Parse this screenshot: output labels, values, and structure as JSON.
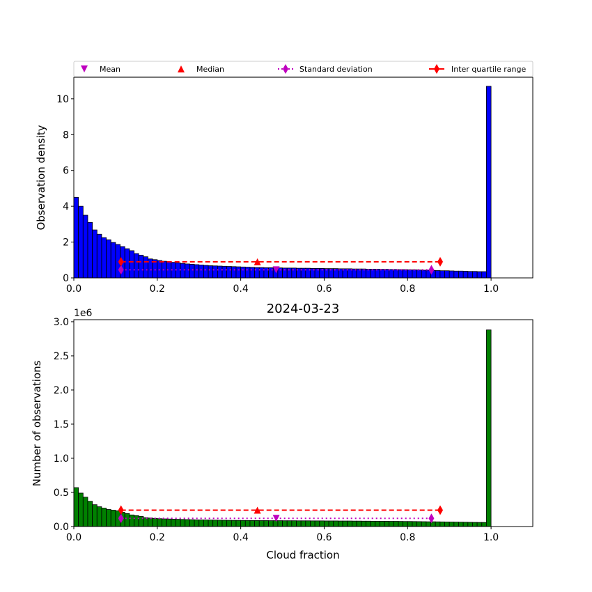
{
  "chart_data": [
    {
      "type": "bar",
      "title": "",
      "xlabel": "",
      "ylabel": "Observation density",
      "xlim": [
        0,
        1.1
      ],
      "ylim": [
        0,
        11.2
      ],
      "xticks": [
        "0.0",
        "0.2",
        "0.4",
        "0.6",
        "0.8",
        "1.0"
      ],
      "yticks": [
        "0",
        "2",
        "4",
        "6",
        "8",
        "10"
      ],
      "ytick_values": [
        0,
        2,
        4,
        6,
        8,
        10
      ],
      "bin_count": 90,
      "bar_color": "#0000ff",
      "values": [
        4.5,
        4.0,
        3.5,
        3.1,
        2.68,
        2.44,
        2.25,
        2.13,
        1.98,
        1.87,
        1.75,
        1.63,
        1.52,
        1.36,
        1.27,
        1.18,
        1.06,
        1.02,
        0.97,
        0.93,
        0.9,
        0.87,
        0.84,
        0.81,
        0.78,
        0.76,
        0.74,
        0.72,
        0.7,
        0.68,
        0.67,
        0.66,
        0.65,
        0.64,
        0.63,
        0.62,
        0.61,
        0.6,
        0.59,
        0.58,
        0.58,
        0.57,
        0.57,
        0.56,
        0.56,
        0.55,
        0.55,
        0.55,
        0.54,
        0.54,
        0.54,
        0.53,
        0.53,
        0.53,
        0.52,
        0.52,
        0.52,
        0.51,
        0.51,
        0.51,
        0.5,
        0.5,
        0.5,
        0.49,
        0.49,
        0.49,
        0.48,
        0.48,
        0.47,
        0.47,
        0.46,
        0.46,
        0.45,
        0.45,
        0.44,
        0.43,
        0.43,
        0.42,
        0.41,
        0.4,
        0.4,
        0.39,
        0.38,
        0.38,
        0.37,
        0.36,
        0.36,
        0.35,
        0.35,
        10.7
      ],
      "stats": {
        "mean": {
          "x": 0.485,
          "y": 0.45
        },
        "median": {
          "x": 0.44,
          "y": 0.9
        },
        "std_range": {
          "x": [
            0.113,
            0.857
          ],
          "y": 0.45
        },
        "iqr_range": {
          "x": [
            0.113,
            0.878
          ],
          "y": 0.9
        }
      }
    },
    {
      "type": "bar",
      "title": "2024-03-23",
      "xlabel": "Cloud fraction",
      "ylabel": "Number of observations",
      "offset_label": "1e6",
      "xlim": [
        0,
        1.1
      ],
      "ylim": [
        0,
        3.03
      ],
      "xticks": [
        "0.0",
        "0.2",
        "0.4",
        "0.6",
        "0.8",
        "1.0"
      ],
      "yticks": [
        "0.0",
        "0.5",
        "1.0",
        "1.5",
        "2.0",
        "2.5",
        "3.0"
      ],
      "ytick_values": [
        0,
        0.5,
        1,
        1.5,
        2,
        2.5,
        3
      ],
      "bin_count": 90,
      "bar_color": "#008000",
      "values": [
        0.57,
        0.49,
        0.43,
        0.37,
        0.32,
        0.29,
        0.27,
        0.25,
        0.24,
        0.23,
        0.21,
        0.19,
        0.17,
        0.16,
        0.15,
        0.13,
        0.125,
        0.12,
        0.115,
        0.112,
        0.11,
        0.108,
        0.106,
        0.104,
        0.102,
        0.1,
        0.098,
        0.097,
        0.096,
        0.095,
        0.094,
        0.093,
        0.092,
        0.091,
        0.09,
        0.09,
        0.089,
        0.089,
        0.088,
        0.088,
        0.087,
        0.087,
        0.086,
        0.086,
        0.086,
        0.085,
        0.085,
        0.085,
        0.084,
        0.084,
        0.084,
        0.083,
        0.083,
        0.083,
        0.082,
        0.082,
        0.082,
        0.081,
        0.081,
        0.081,
        0.08,
        0.08,
        0.079,
        0.079,
        0.078,
        0.078,
        0.077,
        0.077,
        0.076,
        0.076,
        0.075,
        0.074,
        0.074,
        0.073,
        0.072,
        0.071,
        0.07,
        0.07,
        0.069,
        0.068,
        0.067,
        0.066,
        0.065,
        0.064,
        0.063,
        0.062,
        0.061,
        0.06,
        0.06,
        2.88
      ],
      "stats": {
        "mean": {
          "x": 0.485,
          "y": 0.12
        },
        "median": {
          "x": 0.44,
          "y": 0.24
        },
        "std_range": {
          "x": [
            0.113,
            0.857
          ],
          "y": 0.12
        },
        "iqr_range": {
          "x": [
            0.113,
            0.878
          ],
          "y": 0.24
        }
      }
    }
  ],
  "legend": {
    "placement": "top",
    "items": [
      {
        "label": "Mean",
        "color": "#bf00bf",
        "marker": "triangle-down"
      },
      {
        "label": "Median",
        "color": "#ff0000",
        "marker": "triangle-up"
      },
      {
        "label": "Standard deviation",
        "color": "#bf00bf",
        "marker": "diamond-dotted"
      },
      {
        "label": "Inter quartile range",
        "color": "#ff0000",
        "marker": "diamond-dashed"
      }
    ]
  }
}
